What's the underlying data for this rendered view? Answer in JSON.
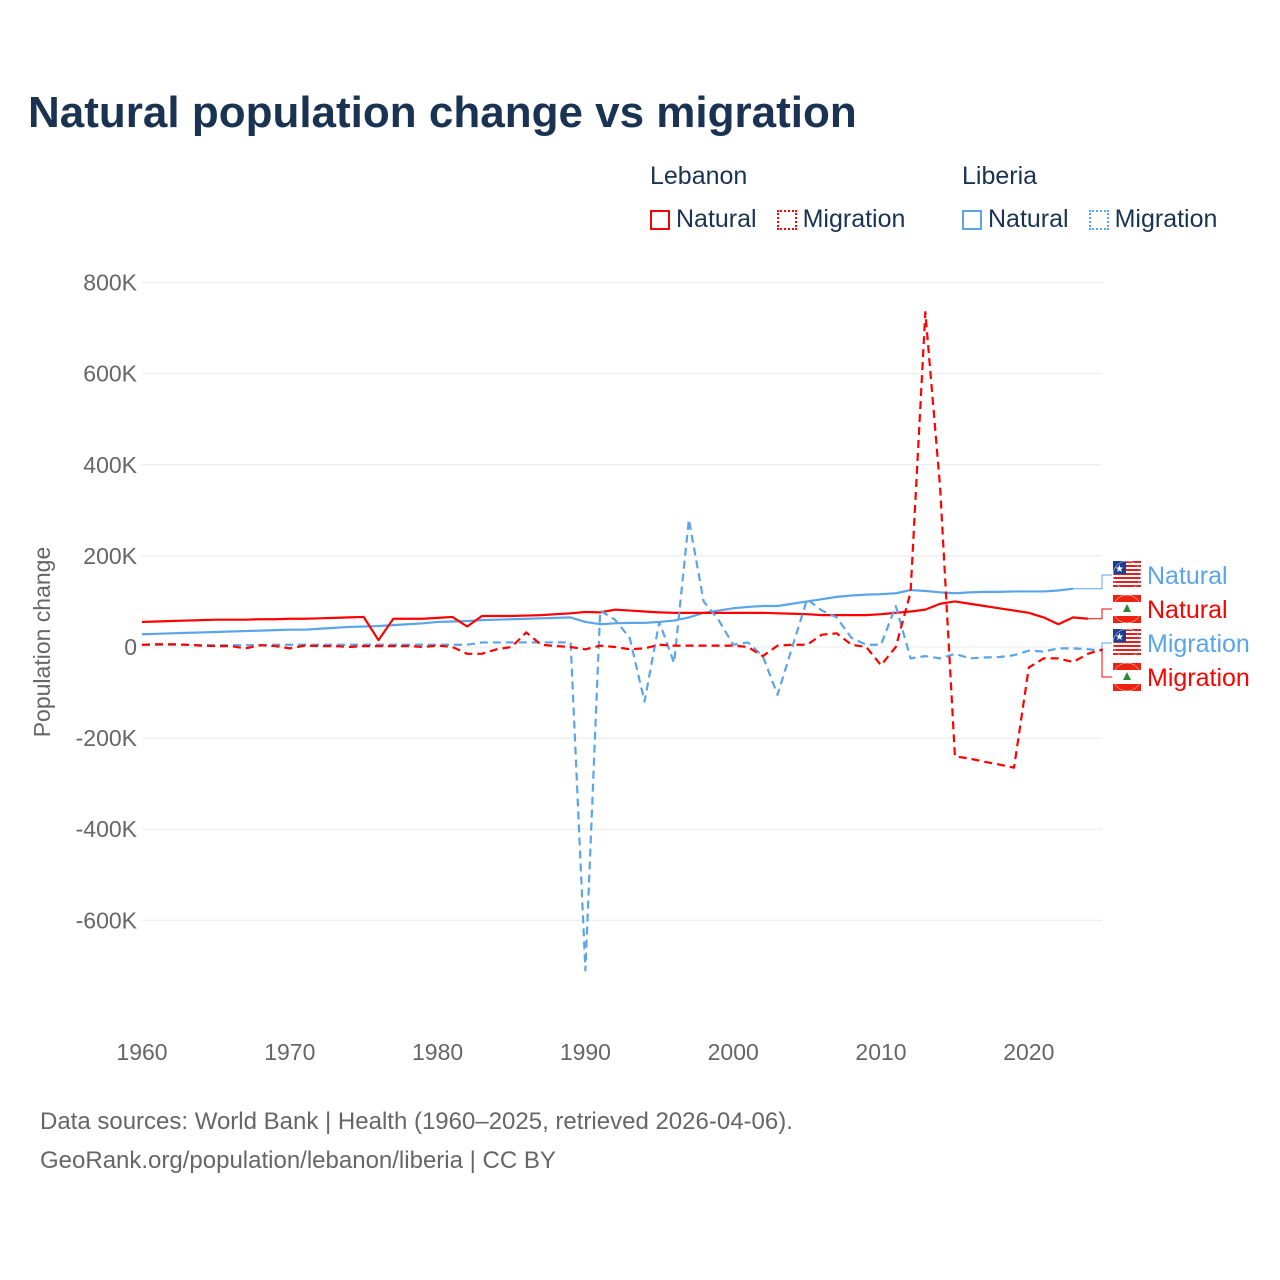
{
  "title": "Natural population change vs migration",
  "legend": [
    {
      "group": "Lebanon",
      "items": [
        {
          "label": "Natural",
          "color": "#ff0000",
          "style": "solid"
        },
        {
          "label": "Migration",
          "color": "#ff0000",
          "style": "dotted"
        }
      ]
    },
    {
      "group": "Liberia",
      "items": [
        {
          "label": "Natural",
          "color": "#5aa5ea",
          "style": "solid"
        },
        {
          "label": "Migration",
          "color": "#5aa5ea",
          "style": "dotted"
        }
      ]
    }
  ],
  "footer": {
    "line1": "Data sources: World Bank | Health (1960–2025, retrieved 2026-04-06).",
    "line2": "GeoRank.org/population/lebanon/liberia | CC BY"
  },
  "chart_data": {
    "type": "line",
    "title": "Natural population change vs migration",
    "xlabel": "",
    "ylabel": "Population change",
    "xlim": [
      1960,
      2025
    ],
    "ylim": [
      -780000,
      800000
    ],
    "x_ticks": [
      1960,
      1970,
      1980,
      1990,
      2000,
      2010,
      2020
    ],
    "x_tick_labels": [
      "1960",
      "1970",
      "1980",
      "1990",
      "2000",
      "2010",
      "2020"
    ],
    "y_ticks": [
      800000,
      600000,
      400000,
      200000,
      0,
      -200000,
      -400000,
      -600000
    ],
    "y_tick_labels": [
      "800K",
      "600K",
      "400K",
      "200K",
      "0",
      "-200K",
      "-400K",
      "-600K"
    ],
    "grid": true,
    "legend_position": "top-right",
    "start_year": 1960,
    "series": [
      {
        "name": "Liberia Natural",
        "end_label": "Natural",
        "flag": "liberia",
        "color": "#5aa5ea",
        "dash": false,
        "values": [
          28,
          29,
          30,
          31,
          32,
          33,
          34,
          35,
          36,
          37,
          38,
          38,
          40,
          42,
          44,
          45,
          46,
          48,
          50,
          52,
          55,
          56,
          57,
          59,
          60,
          61,
          62,
          63,
          64,
          65,
          55,
          50,
          52,
          53,
          53,
          55,
          58,
          65,
          75,
          80,
          85,
          88,
          90,
          90,
          95,
          100,
          105,
          110,
          113,
          115,
          116,
          118,
          125,
          123,
          120,
          118,
          120,
          121,
          121,
          122,
          122,
          122,
          124,
          128
        ]
      },
      {
        "name": "Lebanon Natural",
        "end_label": "Natural",
        "flag": "lebanon",
        "color": "#ff0000",
        "dash": false,
        "values": [
          55,
          56,
          57,
          58,
          59,
          60,
          60,
          60,
          61,
          61,
          62,
          62,
          63,
          64,
          65,
          66,
          15,
          62,
          62,
          62,
          64,
          66,
          45,
          68,
          68,
          68,
          69,
          70,
          72,
          74,
          77,
          76,
          82,
          80,
          78,
          76,
          75,
          75,
          75,
          75,
          75,
          75,
          75,
          74,
          73,
          72,
          70,
          70,
          70,
          70,
          72,
          75,
          78,
          82,
          95,
          100,
          95,
          90,
          85,
          80,
          75,
          65,
          50,
          65,
          62
        ]
      },
      {
        "name": "Liberia Migration",
        "end_label": "Migration",
        "flag": "liberia",
        "color": "#5aa5ea",
        "dash": true,
        "values": [
          5,
          5,
          5,
          5,
          4,
          4,
          4,
          4,
          4,
          5,
          5,
          5,
          5,
          5,
          5,
          5,
          5,
          5,
          5,
          5,
          5,
          5,
          5,
          10,
          10,
          10,
          10,
          10,
          10,
          10,
          -710,
          80,
          60,
          20,
          -120,
          55,
          -35,
          280,
          100,
          60,
          5,
          10,
          -20,
          -105,
          0,
          105,
          80,
          65,
          20,
          5,
          5,
          90,
          -25,
          -20,
          -25,
          -15,
          -25,
          -23,
          -22,
          -18,
          -8,
          -10,
          -3,
          -3,
          -5,
          -8
        ]
      },
      {
        "name": "Lebanon Migration",
        "end_label": "Migration",
        "flag": "lebanon",
        "color": "#ff0000",
        "dash": true,
        "values": [
          5,
          6,
          6,
          5,
          3,
          2,
          2,
          -3,
          4,
          2,
          -3,
          3,
          2,
          2,
          0,
          2,
          2,
          2,
          2,
          0,
          3,
          0,
          -15,
          -15,
          -5,
          0,
          32,
          5,
          2,
          0,
          -5,
          3,
          0,
          -5,
          -3,
          5,
          3,
          3,
          3,
          3,
          3,
          0,
          -20,
          3,
          5,
          5,
          27,
          30,
          5,
          0,
          -40,
          0,
          120,
          735,
          350,
          -240,
          -245,
          -252,
          -258,
          -265,
          -45,
          -25,
          -25,
          -33,
          -15,
          -5
        ]
      }
    ]
  }
}
